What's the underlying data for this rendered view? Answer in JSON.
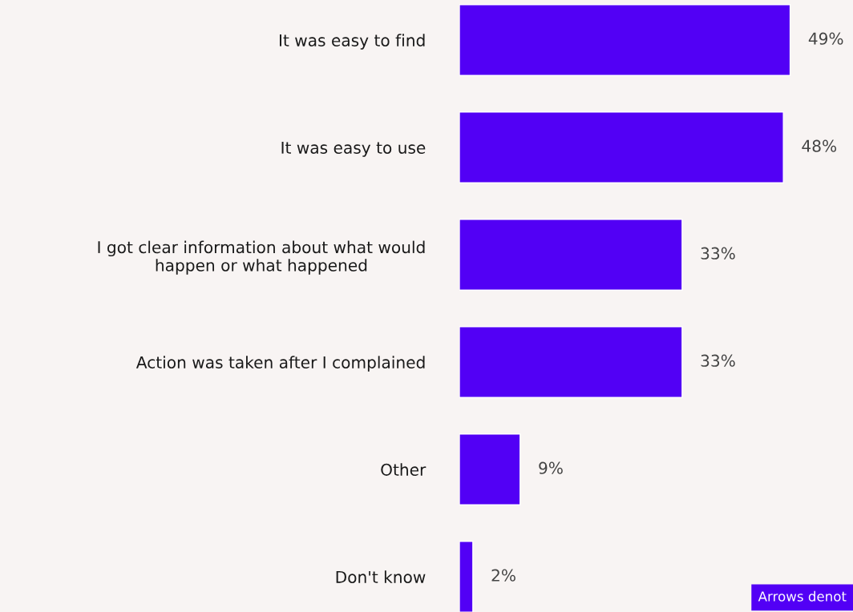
{
  "chart_data": {
    "type": "bar",
    "orientation": "horizontal",
    "categories": [
      "It was easy to find",
      "It was easy to use",
      "I got clear information about what would\nhappen or what happened",
      "Action was taken after I complained",
      "Other",
      "Don't know"
    ],
    "values": [
      49,
      48,
      33,
      33,
      9,
      2
    ],
    "value_labels": [
      "49%",
      "48%",
      "33%",
      "33%",
      "9%",
      "2%"
    ],
    "color": "#5200f5",
    "annotations": [
      "Arrows denot"
    ]
  }
}
